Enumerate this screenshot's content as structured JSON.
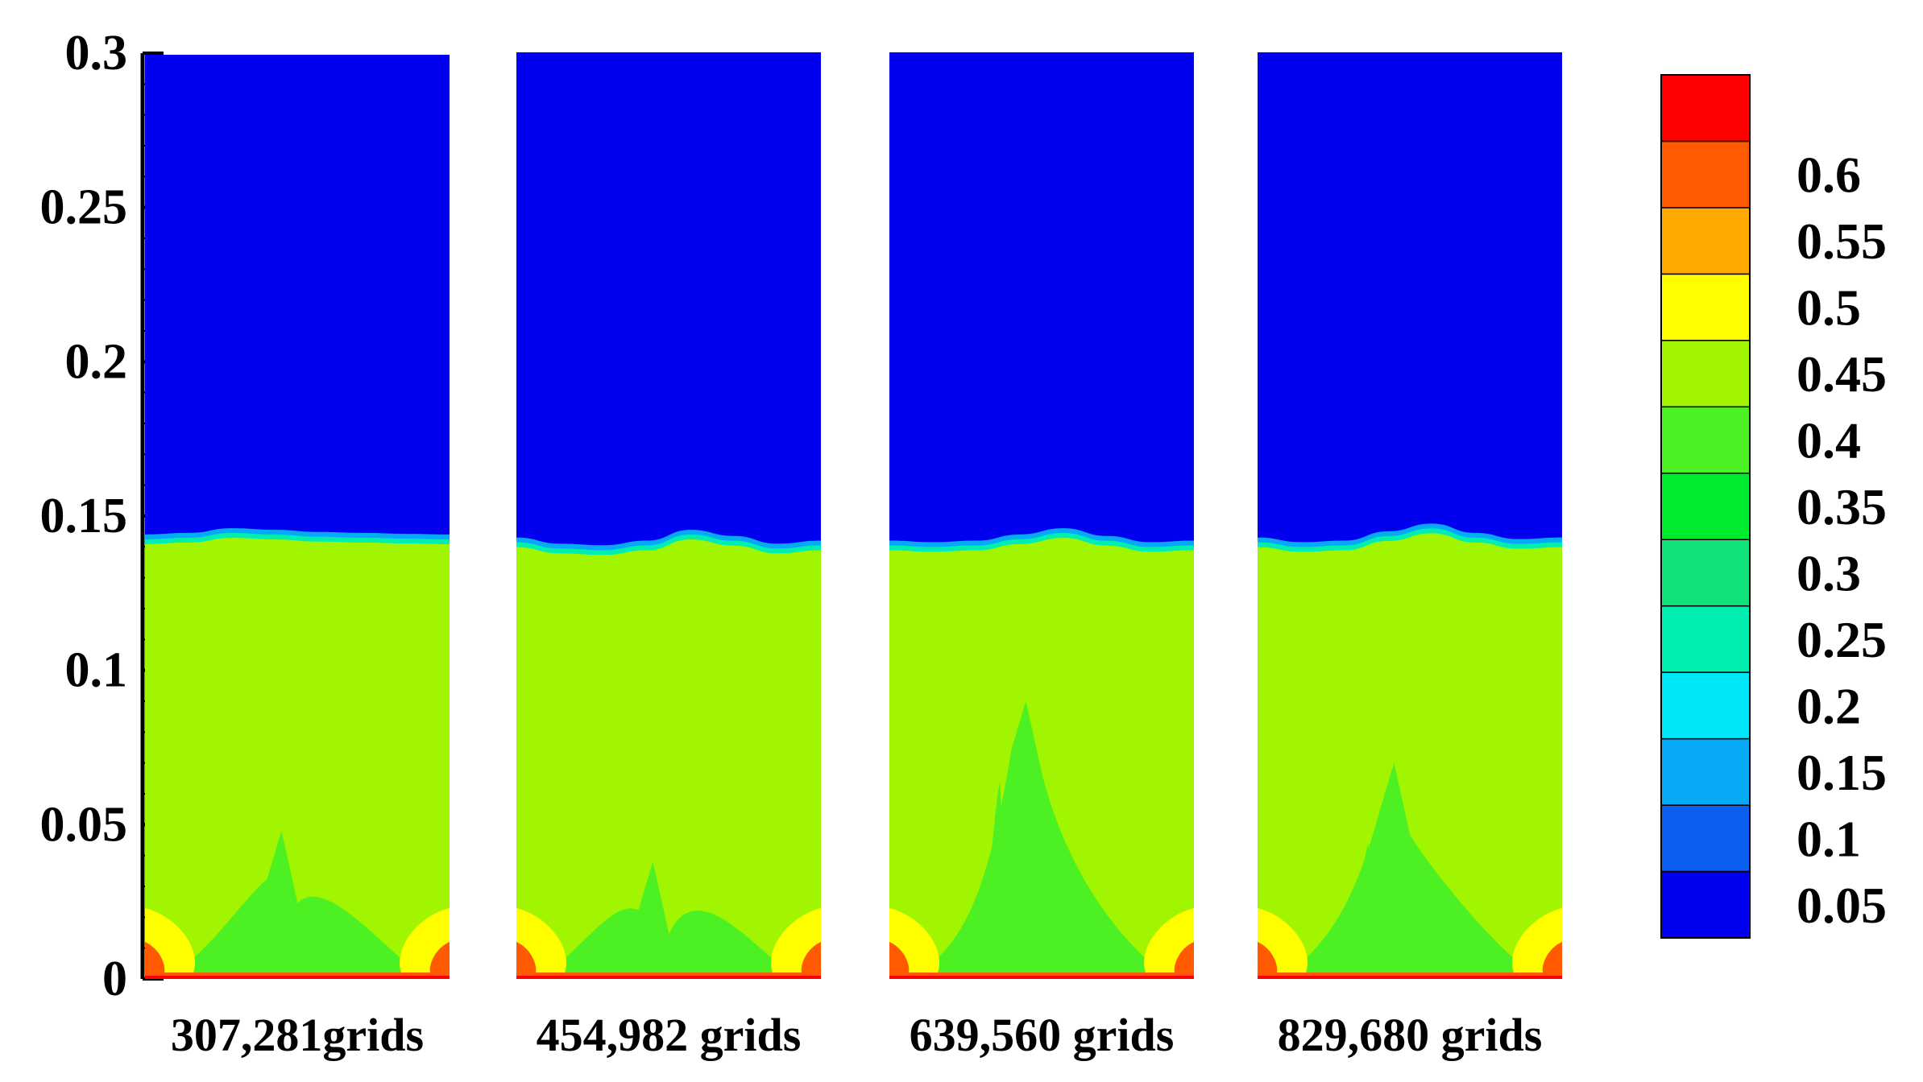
{
  "chart_data": {
    "type": "heatmap",
    "title": "",
    "xlabel": "",
    "ylabel": "",
    "ylim": [
      0,
      0.3
    ],
    "y_ticks": [
      "0",
      "0.05",
      "0.1",
      "0.15",
      "0.2",
      "0.25",
      "0.3"
    ],
    "y_tick_values": [
      0,
      0.05,
      0.1,
      0.15,
      0.2,
      0.25,
      0.3
    ],
    "panels": [
      {
        "label": "307,281grids",
        "interface_height": 0.143,
        "plume_peak": 0.048,
        "interface_wave": [
          0.143,
          0.1435,
          0.145,
          0.1445,
          0.1438,
          0.1435,
          0.1432,
          0.143
        ]
      },
      {
        "label": "454,982 grids",
        "interface_height": 0.141,
        "plume_peak": 0.038,
        "interface_wave": [
          0.142,
          0.14,
          0.1395,
          0.141,
          0.1445,
          0.1425,
          0.14,
          0.141
        ]
      },
      {
        "label": "639,560 grids",
        "interface_height": 0.141,
        "plume_peak": 0.09,
        "interface_wave": [
          0.141,
          0.1405,
          0.141,
          0.143,
          0.145,
          0.1425,
          0.1405,
          0.141
        ]
      },
      {
        "label": "829,680 grids",
        "interface_height": 0.142,
        "plume_peak": 0.07,
        "interface_wave": [
          0.142,
          0.1405,
          0.141,
          0.144,
          0.1465,
          0.1435,
          0.1415,
          0.142
        ]
      }
    ],
    "colorbar": {
      "levels": [
        "0.05",
        "0.1",
        "0.15",
        "0.2",
        "0.25",
        "0.3",
        "0.35",
        "0.4",
        "0.45",
        "0.5",
        "0.55",
        "0.6"
      ],
      "colors": [
        "#0000ee",
        "#0a5ff0",
        "#05a9f5",
        "#00e8f8",
        "#00eeb0",
        "#12e27a",
        "#00ea2e",
        "#4cf023",
        "#a2f500",
        "#ffff00",
        "#ffa800",
        "#ff5a00",
        "#ff0000"
      ]
    },
    "colors": {
      "gas": "#0000ee",
      "bed": "#a2f500",
      "dense": "#4cf023",
      "edge": "#ffff00",
      "hot": "#ff5a00",
      "interface": "#05a9f5"
    }
  }
}
